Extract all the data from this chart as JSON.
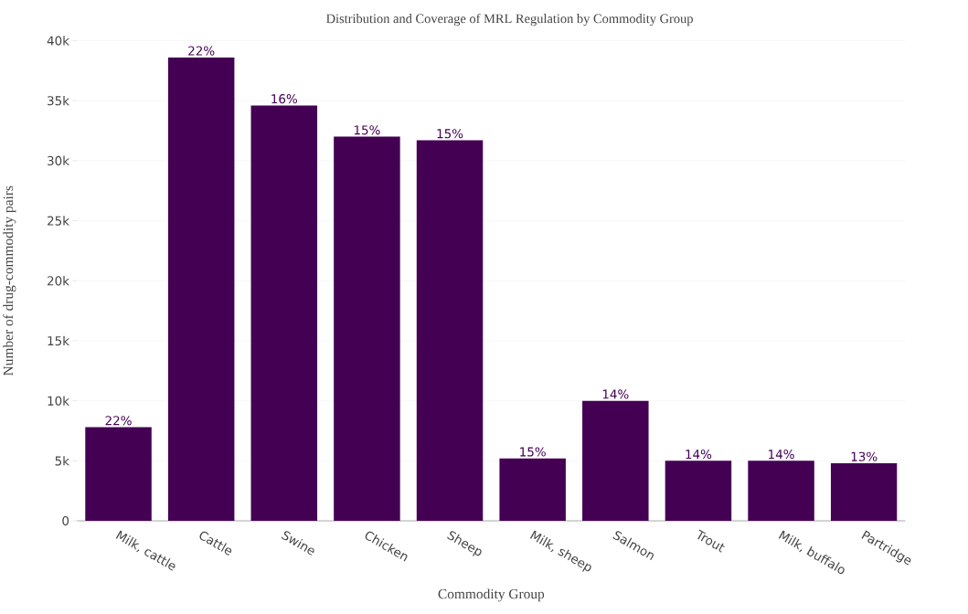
{
  "chart_data": {
    "type": "bar",
    "title": "Distribution and Coverage of MRL Regulation by Commodity Group",
    "xlabel": "Commodity Group",
    "ylabel": "Number of drug-commodity pairs",
    "categories": [
      "Milk, cattle",
      "Cattle",
      "Swine",
      "Chicken",
      "Sheep",
      "Milk, sheep",
      "Salmon",
      "Trout",
      "Milk, buffalo",
      "Partridge"
    ],
    "values": [
      7800,
      38600,
      34600,
      32000,
      31700,
      5200,
      10000,
      5000,
      5000,
      4800
    ],
    "annotations": [
      {
        "text": "22%",
        "x": "Milk, cattle",
        "y": 7800
      },
      {
        "text": "22%",
        "x": "Cattle",
        "y": 38600
      },
      {
        "text": "16%",
        "x": "Swine",
        "y": 34600
      },
      {
        "text": "15%",
        "x": "Chicken",
        "y": 32000
      },
      {
        "text": "15%",
        "x": "Sheep",
        "y": 31700
      },
      {
        "text": "15%",
        "x": "Milk, sheep",
        "y": 5200
      },
      {
        "text": "14%",
        "x": "Salmon",
        "y": 10000
      },
      {
        "text": "14%",
        "x": "Trout",
        "y": 5000
      },
      {
        "text": "14%",
        "x": "Milk, buffalo",
        "y": 5000
      },
      {
        "text": "13%",
        "x": "Partridge",
        "y": 4800
      }
    ],
    "color": "#440154",
    "ylim": [
      0,
      40000
    ],
    "yticks": [
      0,
      {
        "value": 5000,
        "label": "5k"
      },
      {
        "value": 10000,
        "label": "10k"
      },
      {
        "value": 15000,
        "label": "15k"
      },
      {
        "value": 20000,
        "label": "20k"
      },
      {
        "value": 25000,
        "label": "25k"
      },
      {
        "value": 30000,
        "label": "30k"
      },
      {
        "value": 35000,
        "label": "35k"
      },
      {
        "value": 40000,
        "label": "40k"
      }
    ],
    "grid": "y"
  }
}
